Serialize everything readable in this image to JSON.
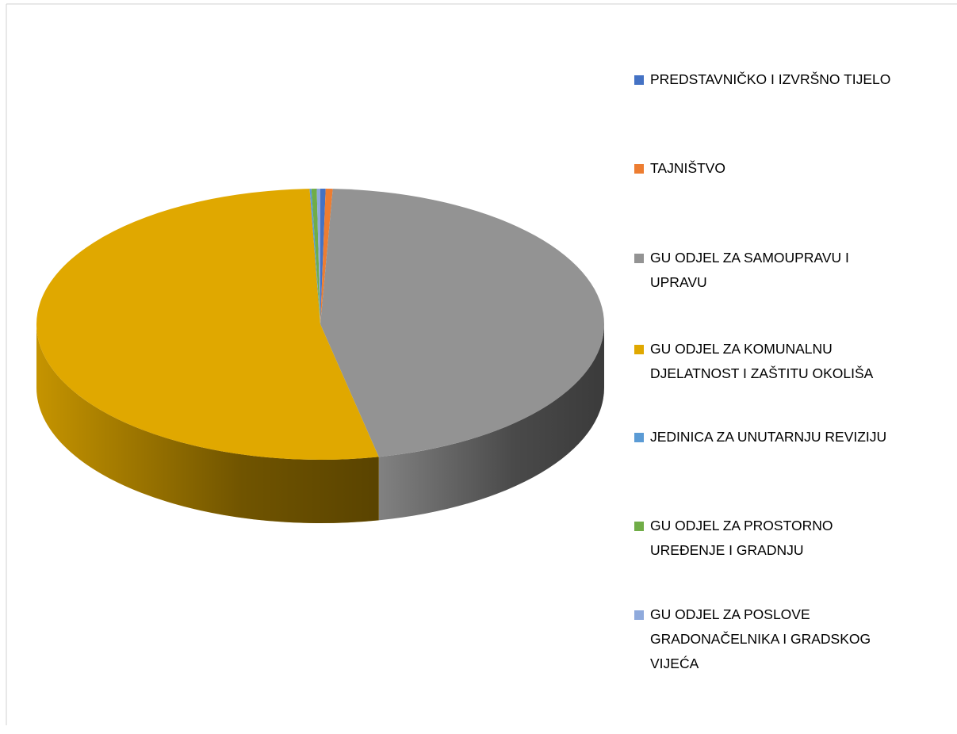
{
  "chart_data": {
    "type": "pie3d",
    "categories": [
      "PREDSTAVNIČKO I IZVRŠNO TIJELO",
      "TAJNIŠTVO",
      "GU ODJEL ZA SAMOUPRAVU I UPRAVU",
      "GU ODJEL ZA KOMUNALNU DJELATNOST I ZAŠTITU OKOLIŠA",
      "JEDINICA ZA UNUTARNJU REVIZIJU",
      "GU ODJEL ZA PROSTORNO UREĐENJE I GRADNJU",
      "GU ODJEL ZA POSLOVE GRADONAČELNIKA I GRADSKOG VIJEĆA"
    ],
    "values": [
      0.3,
      0.4,
      46,
      52.7,
      0.1,
      0.3,
      0.2
    ],
    "colors": [
      "#4472c4",
      "#ed7d31",
      "#939393",
      "#e0a800",
      "#5b9bd5",
      "#70ad47",
      "#8faadc"
    ],
    "legend": "right"
  }
}
